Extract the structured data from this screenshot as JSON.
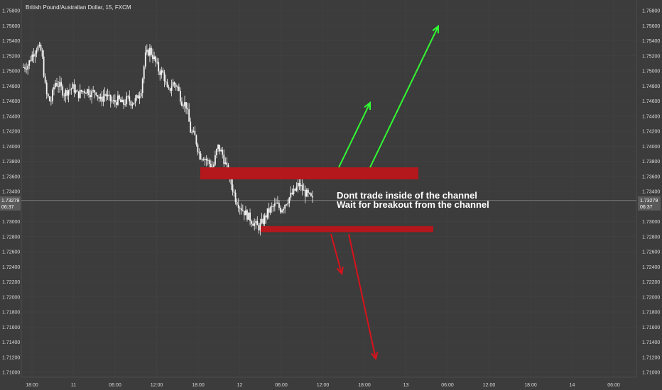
{
  "chart_data": {
    "type": "candlestick",
    "title": "British Pound/Australian Dollar, 15, FXCM",
    "ylim": [
      1.7,
      1.76
    ],
    "y_ticks": [
      "1.71000",
      "1.71200",
      "1.71400",
      "1.71600",
      "1.71800",
      "1.72000",
      "1.72200",
      "1.72400",
      "1.72600",
      "1.72800",
      "1.73000",
      "1.73400",
      "1.73600",
      "1.73800",
      "1.74000",
      "1.74200",
      "1.74400",
      "1.74600",
      "1.74800",
      "1.75000",
      "1.75200",
      "1.75400",
      "1.75600",
      "1.75800"
    ],
    "x_ticks": [
      "18:00",
      "11",
      "06:00",
      "12:00",
      "18:00",
      "12",
      "06:00",
      "12:00",
      "18:00",
      "13",
      "06:00",
      "12:00",
      "18:00",
      "14",
      "06:00"
    ],
    "current_price": {
      "value": "1.73279",
      "time": "06:37"
    },
    "price_path": [
      1.7505,
      1.7508,
      1.7522,
      1.7532,
      1.7526,
      1.747,
      1.7458,
      1.7485,
      1.748,
      1.747,
      1.7475,
      1.7478,
      1.7468,
      1.7473,
      1.7475,
      1.747,
      1.7474,
      1.746,
      1.747,
      1.7462,
      1.7458,
      1.7462,
      1.7455,
      1.7463,
      1.7458,
      1.7462,
      1.7474,
      1.752,
      1.7528,
      1.7515,
      1.75,
      1.7496,
      1.747,
      1.7484,
      1.748,
      1.746,
      1.7455,
      1.742,
      1.7412,
      1.7388,
      1.7386,
      1.7378,
      1.7372,
      1.74,
      1.739,
      1.737,
      1.735,
      1.733,
      1.732,
      1.7312,
      1.7305,
      1.7298,
      1.7292,
      1.73,
      1.7312,
      1.7318,
      1.7323,
      1.7316,
      1.7325,
      1.7333,
      1.734,
      1.735,
      1.734,
      1.7335,
      1.7328
    ],
    "channel": {
      "resistance": {
        "low": 1.7356,
        "high": 1.7372
      },
      "support": {
        "low": 1.7286,
        "high": 1.7294
      }
    },
    "annotations": [
      "Dont trade inside of the channel",
      "Wait for breakout from the channel"
    ],
    "colors": {
      "background": "#3c3c3c",
      "candle": "#f5f5f5",
      "zone": "#b4181c",
      "up_arrow": "#31ff31",
      "down_arrow": "#d8121c",
      "grid": "#555555"
    }
  }
}
